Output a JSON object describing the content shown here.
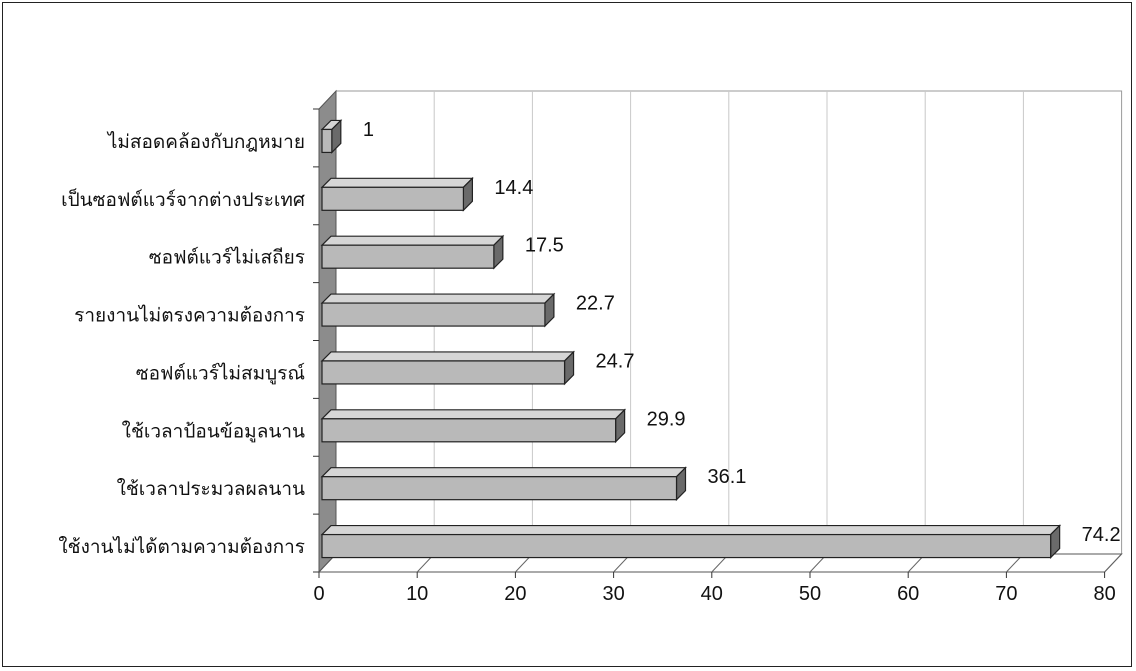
{
  "chart_data": {
    "type": "bar",
    "orientation": "horizontal",
    "three_d": true,
    "categories": [
      "ไม่สอดคล้องกับกฎหมาย",
      "เป็นซอฟต์แวร์จากต่างประเทศ",
      "ซอฟต์แวร์ไม่เสถียร",
      "รายงานไม่ตรงความต้องการ",
      "ซอฟต์แวร์ไม่สมบูรณ์",
      "ใช้เวลาป้อนข้อมูลนาน",
      "ใช้เวลาประมวลผลนาน",
      "ใช้งานไม่ได้ตามความต้องการ"
    ],
    "values": [
      1,
      14.4,
      17.5,
      22.7,
      24.7,
      29.9,
      36.1,
      74.2
    ],
    "value_labels": [
      "1",
      "14.4",
      "17.5",
      "22.7",
      "24.7",
      "29.9",
      "36.1",
      "74.2"
    ],
    "xlim": [
      0,
      80
    ],
    "x_ticks": [
      "0",
      "10",
      "20",
      "30",
      "40",
      "50",
      "60",
      "70",
      "80"
    ],
    "grid": true,
    "legend": "none",
    "colors": {
      "bar_front": "#b9b9b9",
      "bar_top": "#d6d6d6",
      "bar_side": "#6a6a6a",
      "side_wall": "#8c8c8c",
      "floor": "#ffffff",
      "gridline": "#c8c8c8"
    }
  }
}
